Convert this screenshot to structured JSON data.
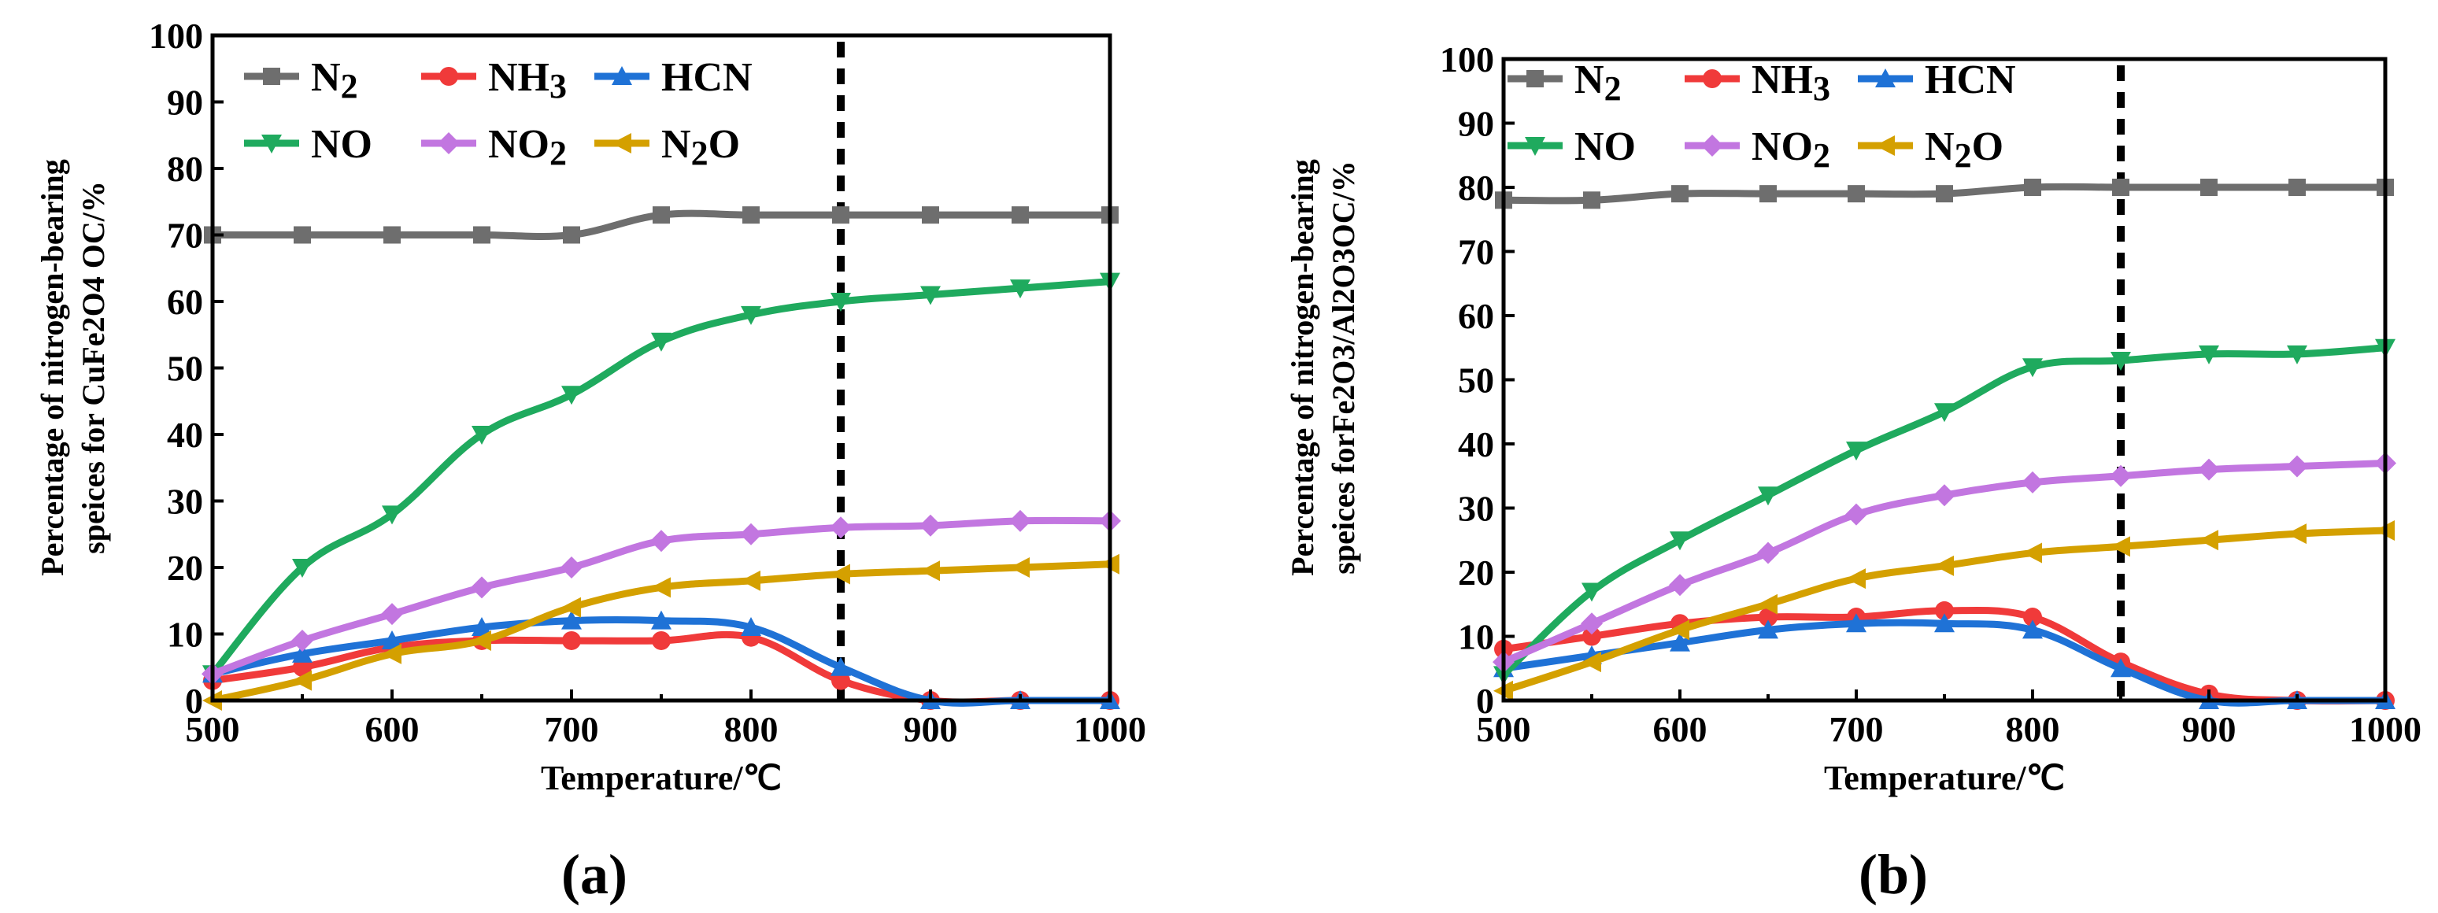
{
  "chart_data": [
    {
      "type": "line",
      "panel_label": "(a)",
      "xlabel": "Temperature/℃",
      "ylabel_lines": [
        "Percentage of nitrogen-bearing",
        "speices for CuFe2O4 OC/%"
      ],
      "xlim": [
        500,
        1000
      ],
      "ylim": [
        0,
        100
      ],
      "xticks": [
        "500",
        "600",
        "700",
        "800",
        "900",
        "1000"
      ],
      "yticks": [
        "0",
        "10",
        "20",
        "30",
        "40",
        "50",
        "60",
        "70",
        "80",
        "90",
        "100"
      ],
      "vertical_line_x": 850,
      "x": [
        500,
        550,
        600,
        650,
        700,
        750,
        800,
        850,
        900,
        950,
        1000
      ],
      "series": [
        {
          "name": "N2",
          "color": "#6e6e6e",
          "marker": "square",
          "values": [
            70,
            70,
            70,
            70,
            70,
            73,
            73,
            73,
            73,
            73,
            73
          ]
        },
        {
          "name": "NH3",
          "color": "#f03a3a",
          "marker": "circle",
          "values": [
            3,
            5,
            8,
            9,
            9,
            9,
            9.5,
            3,
            0,
            0,
            0
          ]
        },
        {
          "name": "HCN",
          "color": "#1f72d6",
          "marker": "triangle-up",
          "values": [
            4,
            7,
            9,
            11,
            12,
            12,
            11,
            5,
            0,
            0,
            0
          ]
        },
        {
          "name": "NO",
          "color": "#1faa5e",
          "marker": "triangle-down",
          "values": [
            4,
            20,
            28,
            40,
            46,
            54,
            58,
            60,
            61,
            62,
            63
          ]
        },
        {
          "name": "NO2",
          "color": "#c276e0",
          "marker": "diamond",
          "values": [
            4,
            9,
            13,
            17,
            20,
            24,
            25,
            26,
            26.3,
            27,
            27
          ]
        },
        {
          "name": "N2O",
          "color": "#d4a000",
          "marker": "triangle-left",
          "values": [
            0,
            3,
            7,
            9,
            14,
            17,
            18,
            19,
            19.5,
            20,
            20.5
          ]
        }
      ]
    },
    {
      "type": "line",
      "panel_label": "(b)",
      "xlabel": "Temperature/℃",
      "ylabel_lines": [
        "Percentage of nitrogen-bearing",
        "speices forFe2O3/Al2O3OC/%"
      ],
      "xlim": [
        500,
        1000
      ],
      "ylim": [
        0,
        100
      ],
      "xticks": [
        "500",
        "600",
        "700",
        "800",
        "900",
        "1000"
      ],
      "yticks": [
        "0",
        "10",
        "20",
        "30",
        "40",
        "50",
        "60",
        "70",
        "80",
        "90",
        "100"
      ],
      "vertical_line_x": 850,
      "x": [
        500,
        550,
        600,
        650,
        700,
        750,
        800,
        850,
        900,
        950,
        1000
      ],
      "series": [
        {
          "name": "N2",
          "color": "#6e6e6e",
          "marker": "square",
          "values": [
            78,
            78,
            79,
            79,
            79,
            79,
            80,
            80,
            80,
            80,
            80
          ]
        },
        {
          "name": "NH3",
          "color": "#f03a3a",
          "marker": "circle",
          "values": [
            8,
            10,
            12,
            13,
            13,
            14,
            13,
            6,
            1,
            0,
            0
          ]
        },
        {
          "name": "HCN",
          "color": "#1f72d6",
          "marker": "triangle-up",
          "values": [
            5,
            7,
            9,
            11,
            12,
            12,
            11,
            5,
            0,
            0,
            0
          ]
        },
        {
          "name": "NO",
          "color": "#1faa5e",
          "marker": "triangle-down",
          "values": [
            4,
            17,
            25,
            32,
            39,
            45,
            52,
            53,
            54,
            54,
            55
          ]
        },
        {
          "name": "NO2",
          "color": "#c276e0",
          "marker": "diamond",
          "values": [
            6,
            12,
            18,
            23,
            29,
            32,
            34,
            35,
            36,
            36.5,
            37
          ]
        },
        {
          "name": "N2O",
          "color": "#d4a000",
          "marker": "triangle-left",
          "values": [
            1.5,
            6,
            11,
            15,
            19,
            21,
            23,
            24,
            25,
            26,
            26.5
          ]
        }
      ]
    }
  ]
}
